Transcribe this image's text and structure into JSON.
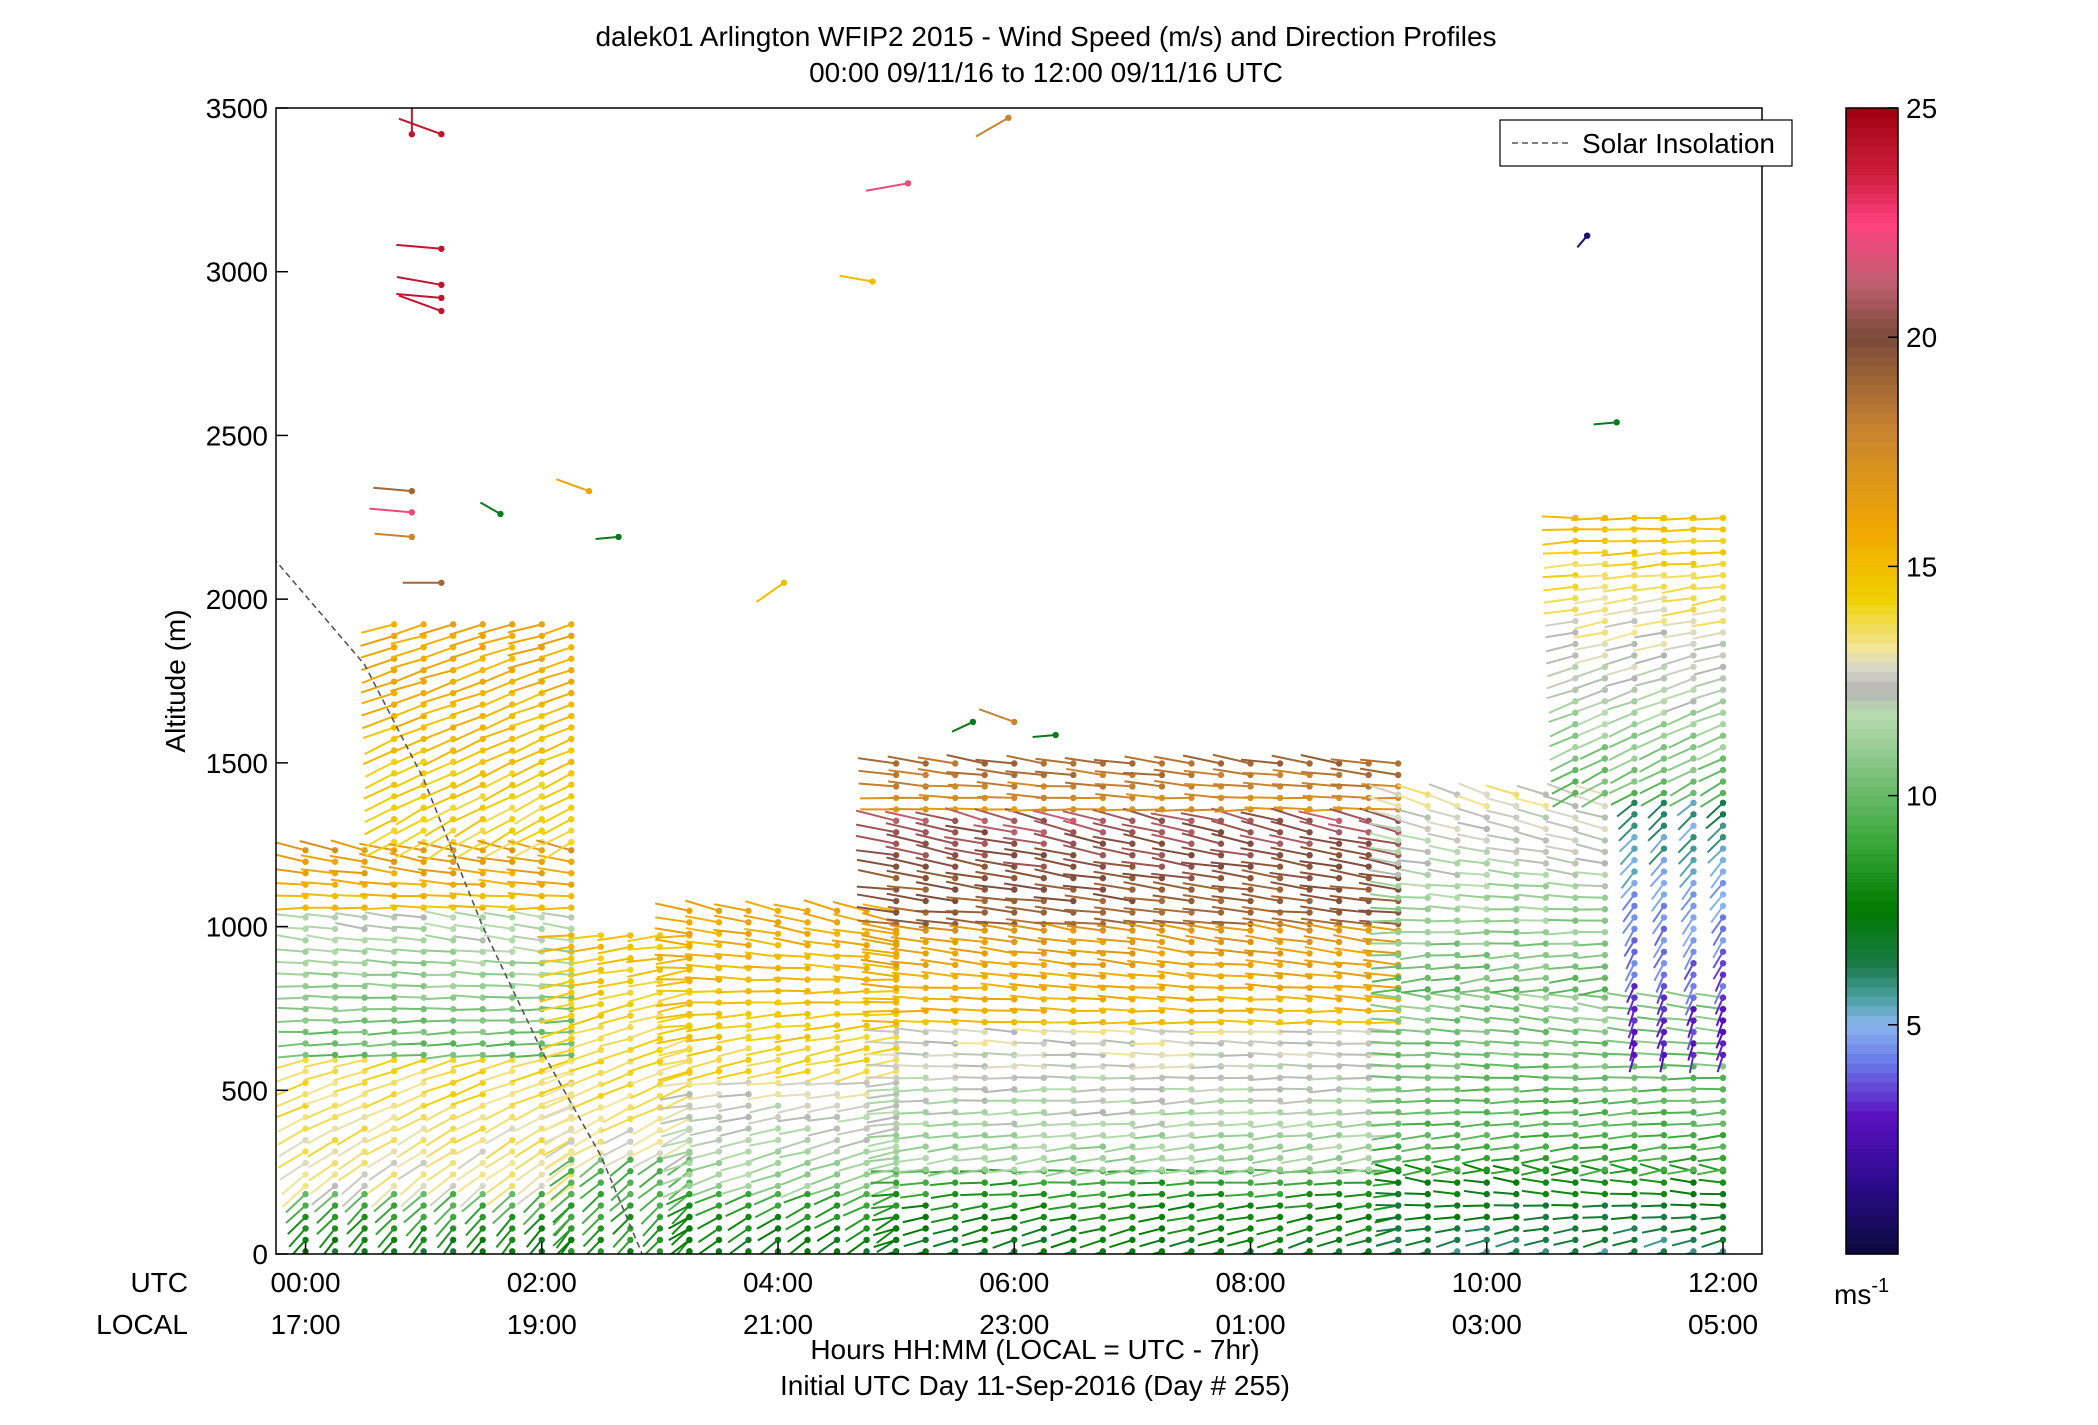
{
  "chart_data": {
    "type": "scatter",
    "title": "dalek01 Arlington WFIP2 2015 - Wind Speed (m/s) and Direction Profiles",
    "subtitle": "00:00 09/11/16 to 12:00 09/11/16  UTC",
    "ylabel": "Altitude (m)",
    "ylim": [
      0,
      3500
    ],
    "xlim": [
      -0.25,
      12.33
    ],
    "xlabel_lines": [
      "Hours HH:MM  (LOCAL = UTC - 7hr)",
      "Initial UTC Day 11-Sep-2016 (Day # 255)"
    ],
    "x_axis_row_labels": [
      "UTC",
      "LOCAL"
    ],
    "x_ticks": [
      0,
      2,
      4,
      6,
      8,
      10,
      12
    ],
    "x_tick_labels_utc": [
      "00:00",
      "02:00",
      "04:00",
      "06:00",
      "08:00",
      "10:00",
      "12:00"
    ],
    "x_tick_labels_local": [
      "17:00",
      "19:00",
      "21:00",
      "23:00",
      "01:00",
      "03:00",
      "05:00"
    ],
    "y_ticks": [
      0,
      500,
      1000,
      1500,
      2000,
      2500,
      3000,
      3500
    ],
    "grid": false,
    "legend": {
      "placement": "top-right",
      "entries": [
        "Solar Insolation"
      ]
    },
    "colorbar": {
      "ticks": [
        5,
        10,
        15,
        20,
        25
      ],
      "range": [
        0,
        25
      ],
      "unit_label": "ms",
      "unit_exp": "-1",
      "stops": [
        {
          "v": 0,
          "c": "#0a0a3a"
        },
        {
          "v": 1.5,
          "c": "#2a0a8a"
        },
        {
          "v": 3,
          "c": "#5a10c0"
        },
        {
          "v": 4.2,
          "c": "#6a7ae8"
        },
        {
          "v": 5,
          "c": "#8ab6f0"
        },
        {
          "v": 5.6,
          "c": "#4aa0a0"
        },
        {
          "v": 6.3,
          "c": "#1a7a4a"
        },
        {
          "v": 7.5,
          "c": "#007a00"
        },
        {
          "v": 9,
          "c": "#3aa83a"
        },
        {
          "v": 10.5,
          "c": "#7ec27e"
        },
        {
          "v": 11.8,
          "c": "#b8dcb0"
        },
        {
          "v": 12.3,
          "c": "#b4b4b4"
        },
        {
          "v": 12.8,
          "c": "#d8d8c8"
        },
        {
          "v": 13.2,
          "c": "#f2e69a"
        },
        {
          "v": 14.3,
          "c": "#f0d000"
        },
        {
          "v": 15.8,
          "c": "#f0a800"
        },
        {
          "v": 18,
          "c": "#c88430"
        },
        {
          "v": 20,
          "c": "#7a4a3a"
        },
        {
          "v": 21.2,
          "c": "#c06070"
        },
        {
          "v": 22.5,
          "c": "#ff4080"
        },
        {
          "v": 23.5,
          "c": "#d02040"
        },
        {
          "v": 25,
          "c": "#a00010"
        }
      ]
    },
    "solar_insolation_line": [
      [
        -0.33,
        2150
      ],
      [
        0.5,
        1800
      ],
      [
        1.0,
        1450
      ],
      [
        1.5,
        1000
      ],
      [
        2.0,
        620
      ],
      [
        2.5,
        300
      ],
      [
        2.85,
        0
      ]
    ],
    "profile_times": [
      0,
      0.25,
      0.5,
      0.75,
      1.0,
      1.25,
      1.5,
      1.75,
      2.0,
      2.25,
      2.5,
      2.75,
      3.0,
      3.25,
      3.5,
      3.75,
      4.0,
      4.25,
      4.5,
      4.75,
      5.0,
      5.25,
      5.5,
      5.75,
      6.0,
      6.25,
      6.5,
      6.75,
      7.0,
      7.25,
      7.5,
      7.75,
      8.0,
      8.25,
      8.5,
      8.75,
      9.0,
      9.25,
      9.5,
      9.75,
      10.0,
      10.25,
      10.5,
      10.75,
      11.0,
      11.25,
      11.5,
      11.75,
      12.0
    ],
    "gate_spacing_m": 35,
    "profile_segments": [
      {
        "t": [
          0,
          2.25
        ],
        "z": [
          0,
          200
        ],
        "speed": [
          7,
          10
        ],
        "dir_deg": [
          215,
          230
        ]
      },
      {
        "t": [
          0,
          2.25
        ],
        "z": [
          200,
          600
        ],
        "speed": [
          13,
          14
        ],
        "dir_deg": [
          230,
          255
        ]
      },
      {
        "t": [
          0,
          2.25
        ],
        "z": [
          600,
          1050
        ],
        "speed": [
          10,
          12
        ],
        "dir_deg": [
          265,
          280
        ]
      },
      {
        "t": [
          0,
          2.25
        ],
        "z": [
          1050,
          1250
        ],
        "speed": [
          15,
          17
        ],
        "dir_deg": [
          270,
          285
        ]
      },
      {
        "t": [
          0.75,
          2.25
        ],
        "z": [
          1250,
          1950
        ],
        "speed": [
          14,
          16
        ],
        "dir_deg": [
          240,
          255
        ]
      },
      {
        "t": [
          2.25,
          3.25
        ],
        "z": [
          0,
          300
        ],
        "speed": [
          8,
          10
        ],
        "dir_deg": [
          220,
          235
        ]
      },
      {
        "t": [
          2.25,
          3.25
        ],
        "z": [
          300,
          1000
        ],
        "speed": [
          13,
          15
        ],
        "dir_deg": [
          240,
          265
        ]
      },
      {
        "t": [
          3.25,
          5.0
        ],
        "z": [
          0,
          200
        ],
        "speed": [
          7,
          9
        ],
        "dir_deg": [
          230,
          250
        ]
      },
      {
        "t": [
          3.25,
          5.0
        ],
        "z": [
          200,
          550
        ],
        "speed": [
          11,
          13
        ],
        "dir_deg": [
          250,
          265
        ]
      },
      {
        "t": [
          3.25,
          5.0
        ],
        "z": [
          550,
          1050
        ],
        "speed": [
          14,
          16
        ],
        "dir_deg": [
          255,
          285
        ]
      },
      {
        "t": [
          5.0,
          9.25
        ],
        "z": [
          0,
          250
        ],
        "speed": [
          7,
          9
        ],
        "dir_deg": [
          250,
          270
        ]
      },
      {
        "t": [
          5.0,
          9.25
        ],
        "z": [
          250,
          700
        ],
        "speed": [
          11,
          13
        ],
        "dir_deg": [
          260,
          275
        ]
      },
      {
        "t": [
          5.0,
          9.25
        ],
        "z": [
          700,
          1000
        ],
        "speed": [
          15,
          17
        ],
        "dir_deg": [
          270,
          280
        ]
      },
      {
        "t": [
          5.0,
          9.25
        ],
        "z": [
          1000,
          1350
        ],
        "speed": [
          19,
          21
        ],
        "dir_deg": [
          275,
          285
        ]
      },
      {
        "t": [
          5.0,
          9.25
        ],
        "z": [
          1350,
          1500
        ],
        "speed": [
          17,
          19
        ],
        "dir_deg": [
          270,
          280
        ]
      },
      {
        "t": [
          9.25,
          12.0
        ],
        "z": [
          0,
          250
        ],
        "speed": [
          6,
          8
        ],
        "dir_deg": [
          250,
          285
        ]
      },
      {
        "t": [
          9.25,
          12.0
        ],
        "z": [
          250,
          800
        ],
        "speed": [
          9,
          11
        ],
        "dir_deg": [
          260,
          280
        ]
      },
      {
        "t": [
          9.25,
          11.0
        ],
        "z": [
          800,
          1400
        ],
        "speed": [
          10,
          13
        ],
        "dir_deg": [
          260,
          290
        ]
      },
      {
        "t": [
          10.75,
          12.0
        ],
        "z": [
          1400,
          2250
        ],
        "speed": [
          10,
          15
        ],
        "dir_deg": [
          240,
          270
        ]
      },
      {
        "t": [
          11.25,
          12.0
        ],
        "z": [
          600,
          1400
        ],
        "speed": [
          3,
          6
        ],
        "dir_deg": [
          195,
          230
        ]
      }
    ],
    "isolated_points": [
      {
        "t": 0.9,
        "z": 3420,
        "speed": 24,
        "dir_deg": 0
      },
      {
        "t": 1.15,
        "z": 3420,
        "speed": 24,
        "dir_deg": 290
      },
      {
        "t": 1.15,
        "z": 3070,
        "speed": 24,
        "dir_deg": 275
      },
      {
        "t": 1.15,
        "z": 2960,
        "speed": 24,
        "dir_deg": 280
      },
      {
        "t": 1.15,
        "z": 2920,
        "speed": 24,
        "dir_deg": 275
      },
      {
        "t": 1.15,
        "z": 2880,
        "speed": 24,
        "dir_deg": 290
      },
      {
        "t": 0.9,
        "z": 2330,
        "speed": 19,
        "dir_deg": 275
      },
      {
        "t": 0.9,
        "z": 2265,
        "speed": 22,
        "dir_deg": 275
      },
      {
        "t": 0.9,
        "z": 2190,
        "speed": 18,
        "dir_deg": 275
      },
      {
        "t": 1.15,
        "z": 2050,
        "speed": 19,
        "dir_deg": 270
      },
      {
        "t": 1.65,
        "z": 2260,
        "speed": 7,
        "dir_deg": 300
      },
      {
        "t": 2.4,
        "z": 2330,
        "speed": 16,
        "dir_deg": 290
      },
      {
        "t": 2.65,
        "z": 2190,
        "speed": 7,
        "dir_deg": 265
      },
      {
        "t": 4.05,
        "z": 2050,
        "speed": 15,
        "dir_deg": 235
      },
      {
        "t": 4.8,
        "z": 2970,
        "speed": 15,
        "dir_deg": 280
      },
      {
        "t": 5.1,
        "z": 3270,
        "speed": 22,
        "dir_deg": 260
      },
      {
        "t": 5.65,
        "z": 1625,
        "speed": 7,
        "dir_deg": 245
      },
      {
        "t": 6.0,
        "z": 1625,
        "speed": 18,
        "dir_deg": 290
      },
      {
        "t": 6.35,
        "z": 1585,
        "speed": 7,
        "dir_deg": 265
      },
      {
        "t": 5.95,
        "z": 3470,
        "speed": 18,
        "dir_deg": 240
      },
      {
        "t": 10.85,
        "z": 3110,
        "speed": 1,
        "dir_deg": 220
      },
      {
        "t": 11.1,
        "z": 2540,
        "speed": 7,
        "dir_deg": 265
      }
    ]
  }
}
